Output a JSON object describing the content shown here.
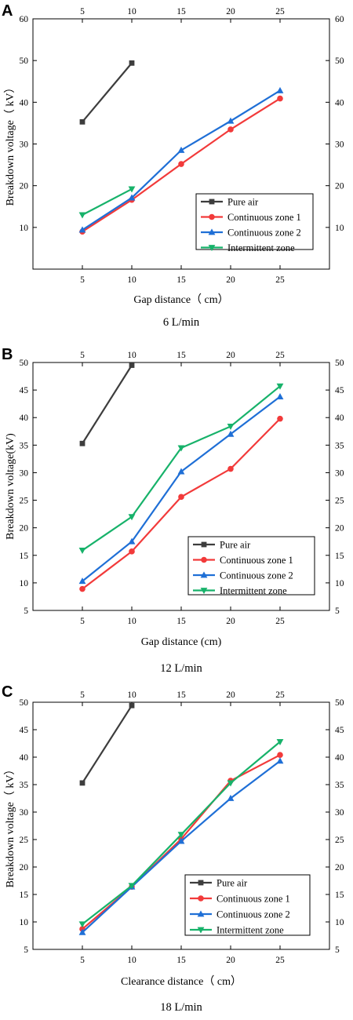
{
  "chart_data": [
    {
      "type": "line",
      "panel": "A",
      "x": [
        5,
        10,
        15,
        20,
        25
      ],
      "xlim": [
        0,
        30
      ],
      "ylim": [
        0,
        60
      ],
      "yticks": [
        10,
        20,
        30,
        40,
        50,
        60
      ],
      "xlabel": "Gap distance（ cm）",
      "ylabel": "Breakdown voltage（ kV）",
      "subtitle": "6 L/min",
      "legend_position": "lower-right",
      "series": [
        {
          "name": "Pure air",
          "color": "#3d3d3d",
          "marker": "square",
          "values": [
            35.3,
            49.4,
            null,
            null,
            null
          ]
        },
        {
          "name": "Continuous zone 1",
          "color": "#f23a3a",
          "marker": "circle",
          "values": [
            9.0,
            16.6,
            25.2,
            33.5,
            40.9
          ]
        },
        {
          "name": "Continuous zone 2",
          "color": "#1f6fd6",
          "marker": "triangle-up",
          "values": [
            9.4,
            17.1,
            28.5,
            35.5,
            42.8
          ]
        },
        {
          "name": "Intermittent zone",
          "color": "#17b26a",
          "marker": "triangle-down",
          "values": [
            13.0,
            19.2,
            null,
            null,
            null
          ]
        }
      ]
    },
    {
      "type": "line",
      "panel": "B",
      "x": [
        5,
        10,
        15,
        20,
        25
      ],
      "xlim": [
        0,
        30
      ],
      "ylim": [
        5,
        50
      ],
      "yticks": [
        5,
        10,
        15,
        20,
        25,
        30,
        35,
        40,
        45,
        50
      ],
      "xlabel": "Gap distance (cm)",
      "ylabel": "Breakdown voltage(kV)",
      "subtitle": "12 L/min",
      "legend_position": "lower-right",
      "series": [
        {
          "name": "Pure air",
          "color": "#3d3d3d",
          "marker": "square",
          "values": [
            35.3,
            49.5,
            null,
            null,
            null
          ]
        },
        {
          "name": "Continuous zone 1",
          "color": "#f23a3a",
          "marker": "circle",
          "values": [
            8.9,
            15.7,
            25.6,
            30.7,
            39.8
          ]
        },
        {
          "name": "Continuous zone 2",
          "color": "#1f6fd6",
          "marker": "triangle-up",
          "values": [
            10.3,
            17.5,
            30.2,
            37.0,
            43.8
          ]
        },
        {
          "name": "Intermittent zone",
          "color": "#17b26a",
          "marker": "triangle-down",
          "values": [
            15.9,
            22.0,
            34.5,
            38.4,
            45.7
          ]
        }
      ]
    },
    {
      "type": "line",
      "panel": "C",
      "x": [
        5,
        10,
        15,
        20,
        25
      ],
      "xlim": [
        0,
        30
      ],
      "ylim": [
        5,
        50
      ],
      "yticks": [
        5,
        10,
        15,
        20,
        25,
        30,
        35,
        40,
        45,
        50
      ],
      "xlabel": "Clearance distance（ cm）",
      "ylabel": "Breakdown voltage（ kV）",
      "subtitle": "18 L/min",
      "legend_position": "lower-right",
      "series": [
        {
          "name": "Pure air",
          "color": "#3d3d3d",
          "marker": "square",
          "values": [
            35.3,
            49.4,
            null,
            null,
            null
          ]
        },
        {
          "name": "Continuous zone 1",
          "color": "#f23a3a",
          "marker": "circle",
          "values": [
            8.7,
            16.4,
            25.1,
            35.7,
            40.4
          ]
        },
        {
          "name": "Continuous zone 2",
          "color": "#1f6fd6",
          "marker": "triangle-up",
          "values": [
            8.1,
            16.4,
            24.7,
            32.5,
            39.3
          ]
        },
        {
          "name": "Intermittent zone",
          "color": "#17b26a",
          "marker": "triangle-down",
          "values": [
            9.6,
            16.6,
            25.9,
            35.3,
            42.8
          ]
        }
      ]
    }
  ]
}
